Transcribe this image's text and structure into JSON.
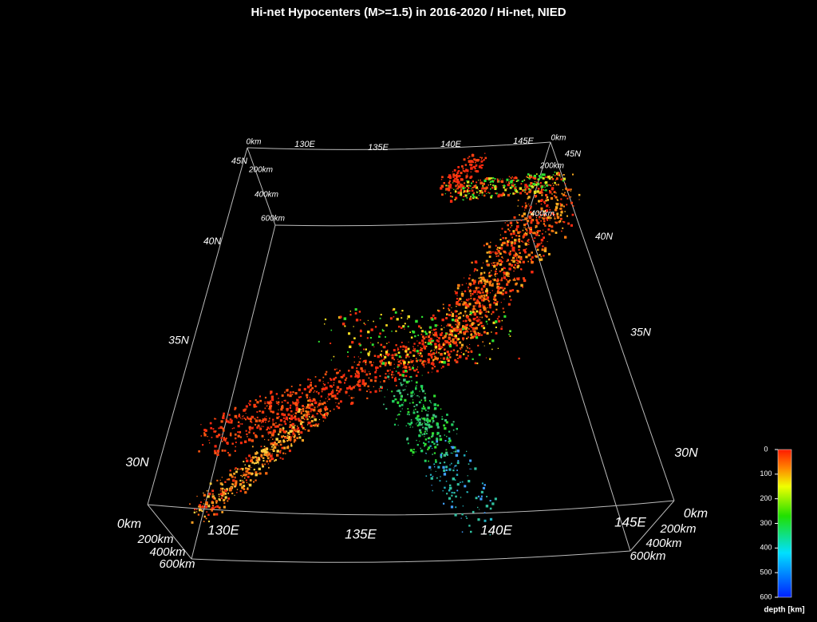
{
  "title": "Hi-net Hypocenters (M>=1.5) in 2016-2020 / Hi-net, NIED",
  "top_longitude": [
    "130E",
    "135E",
    "140E",
    "145E"
  ],
  "bottom_longitude": [
    "130E",
    "135E",
    "140E",
    "145E"
  ],
  "left_latitude": [
    "45N",
    "40N",
    "35N",
    "30N"
  ],
  "right_latitude": [
    "45N",
    "40N",
    "35N",
    "30N"
  ],
  "front_left_depth": [
    "0km",
    "200km",
    "400km",
    "600km"
  ],
  "front_right_depth": [
    "0km",
    "200km",
    "400km",
    "600km"
  ],
  "back_left_depth": [
    "0km",
    "200km",
    "400km",
    "600km"
  ],
  "back_right_depth": [
    "0km",
    "200km",
    "400km"
  ],
  "colorbar": {
    "label": "depth [km]",
    "range": [
      0,
      600
    ],
    "ticks": [
      0,
      100,
      200,
      300,
      400,
      500,
      600
    ]
  }
}
